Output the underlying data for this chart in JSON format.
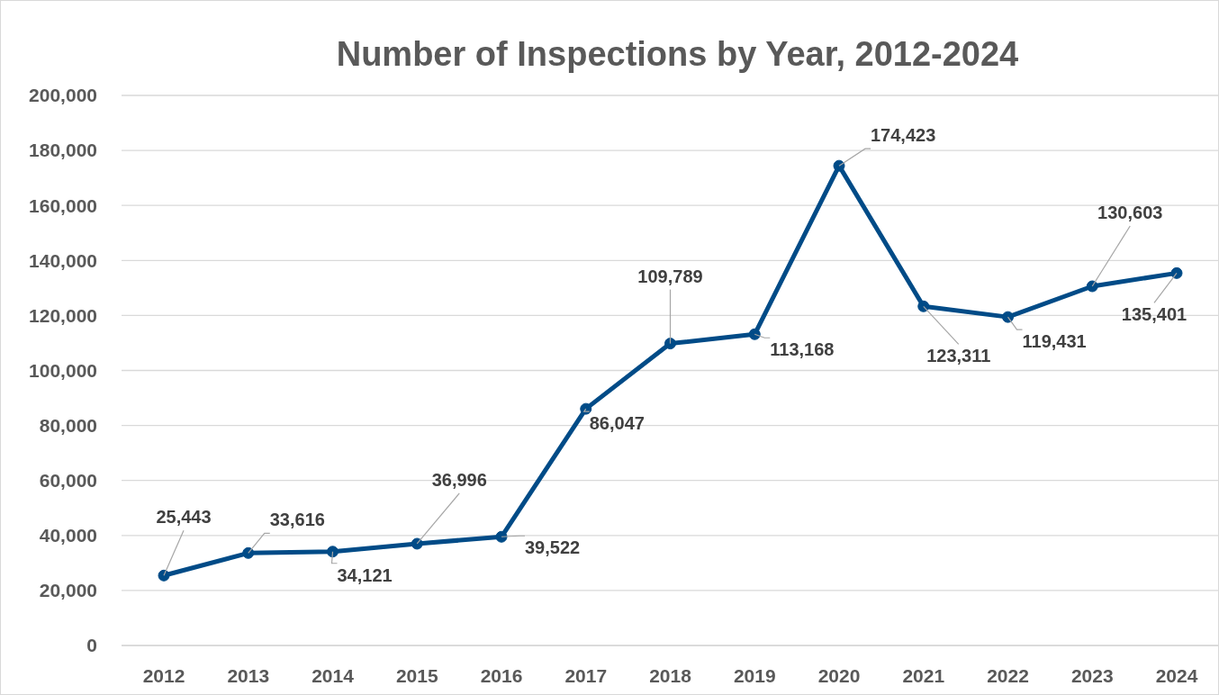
{
  "chart_data": {
    "type": "line",
    "title": "Number of Inspections by Year, 2012-2024",
    "categories": [
      "2012",
      "2013",
      "2014",
      "2015",
      "2016",
      "2017",
      "2018",
      "2019",
      "2020",
      "2021",
      "2022",
      "2023",
      "2024"
    ],
    "series": [
      {
        "color": "#004b87",
        "values": [
          25443,
          33616,
          34121,
          36996,
          39522,
          86047,
          109789,
          113168,
          174423,
          123311,
          119431,
          130603,
          135401
        ],
        "value_labels": [
          "25,443",
          "33,616",
          "34,121",
          "36,996",
          "39,522",
          "86,047",
          "109,789",
          "113,168",
          "174,423",
          "123,311",
          "119,431",
          "130,603",
          "135,401"
        ]
      }
    ],
    "ylim": [
      0,
      200000
    ],
    "yticks": [
      {
        "value": 0,
        "label": "0"
      },
      {
        "value": 20000,
        "label": "20,000"
      },
      {
        "value": 40000,
        "label": "40,000"
      },
      {
        "value": 60000,
        "label": "60,000"
      },
      {
        "value": 80000,
        "label": "80,000"
      },
      {
        "value": 100000,
        "label": "100,000"
      },
      {
        "value": 120000,
        "label": "120,000"
      },
      {
        "value": 140000,
        "label": "140,000"
      },
      {
        "value": 160000,
        "label": "160,000"
      },
      {
        "value": 180000,
        "label": "180,000"
      },
      {
        "value": 200000,
        "label": "200,000"
      }
    ],
    "grid": "y",
    "marker": "circle",
    "line_style": "solid"
  }
}
